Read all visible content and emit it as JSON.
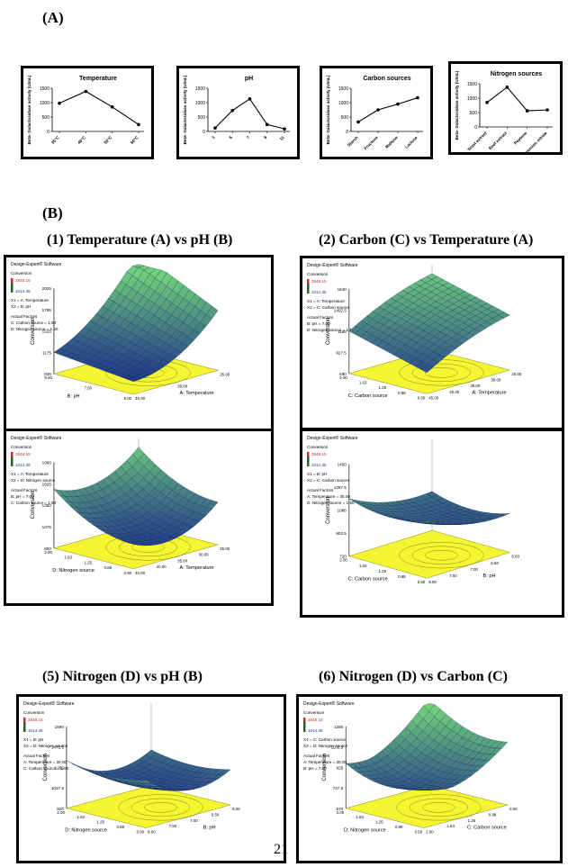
{
  "label_a": "(A)",
  "label_b": "(B)",
  "page_number": "21",
  "charts": [
    {
      "title": "Temperature",
      "ylabel": "Beta- Galactosidase activity (U/mL)",
      "categories": [
        "35°C",
        "40°C",
        "50°C",
        "60°C"
      ],
      "values": [
        980,
        1390,
        850,
        240
      ],
      "ymax": 1500,
      "yticks": [
        0,
        500,
        1000,
        1500
      ]
    },
    {
      "title": "pH",
      "ylabel": "Beta- Galactosidase activity (U/mL)",
      "categories": [
        "3",
        "5",
        "7",
        "9",
        "11"
      ],
      "values": [
        120,
        730,
        1130,
        240,
        90
      ],
      "ymax": 1500,
      "yticks": [
        0,
        500,
        1000,
        1500
      ]
    },
    {
      "title": "Carbon sources",
      "ylabel": "Beta- Galactosidase activity (U/mL)",
      "categories": [
        "Starch",
        "Fructose",
        "Maltose",
        "Lactose"
      ],
      "values": [
        330,
        750,
        950,
        1170
      ],
      "ymax": 1500,
      "yticks": [
        0,
        500,
        1000,
        1500
      ]
    },
    {
      "title": "Nitrogen sources",
      "ylabel": "Beta- Galactosidase activity (U/mL)",
      "categories": [
        "Yeast extract",
        "Beef extract",
        "Peptone",
        "Ammonium nitrate"
      ],
      "values": [
        850,
        1380,
        560,
        590
      ],
      "ymax": 1500,
      "yticks": [
        0,
        500,
        1000,
        1500
      ]
    }
  ],
  "chart_data": [
    {
      "type": "line",
      "title": "Temperature",
      "ylabel": "Beta- Galactosidase activity (U/mL)",
      "categories": [
        "35°C",
        "40°C",
        "50°C",
        "60°C"
      ],
      "values": [
        980,
        1390,
        850,
        240
      ],
      "ylim": [
        0,
        1500
      ]
    },
    {
      "type": "line",
      "title": "pH",
      "ylabel": "Beta- Galactosidase activity (U/mL)",
      "categories": [
        "3",
        "5",
        "7",
        "9",
        "11"
      ],
      "values": [
        120,
        730,
        1130,
        240,
        90
      ],
      "ylim": [
        0,
        1500
      ]
    },
    {
      "type": "line",
      "title": "Carbon sources",
      "ylabel": "Beta- Galactosidase activity (U/mL)",
      "categories": [
        "Starch",
        "Fructose",
        "Maltose",
        "Lactose"
      ],
      "values": [
        330,
        750,
        950,
        1170
      ],
      "ylim": [
        0,
        1500
      ]
    },
    {
      "type": "line",
      "title": "Nitrogen sources",
      "ylabel": "Beta- Galactosidase activity (U/mL)",
      "categories": [
        "Yeast extract",
        "Beef extract",
        "Peptone",
        "Ammonium nitrate"
      ],
      "values": [
        850,
        1380,
        560,
        590
      ],
      "ylim": [
        0,
        1500
      ]
    }
  ],
  "subtitles": {
    "s1": "(1) Temperature (A) vs pH (B)",
    "s2": "(2) Carbon (C) vs Temperature (A)",
    "s5": "(5) Nitrogen (D) vs pH (B)",
    "s6": "(6) Nitrogen (D) vs Carbon (C)"
  },
  "surfaces": [
    {
      "software": "Design-Expert® Software",
      "conv": "Conversion",
      "high": "2848.15",
      "low": "1014.36",
      "x1": "X1 = A: Temperature",
      "x2": "X2 = B: pH",
      "af": "Actual Factors",
      "f1": "C: Carbon source = 1.50",
      "f2": "D: Nitrogen source = 1.50",
      "zlabel": "Conversion",
      "xlabel": "B: pH",
      "ylabel2": "A: Temperature",
      "zt": [
        "2025",
        "1795",
        "1515",
        "1175",
        "835"
      ],
      "xt": [
        "9.00",
        "7.50",
        "6.00"
      ],
      "yt": [
        "45.00",
        "35.00",
        "25.00"
      ]
    },
    {
      "software": "Design-Expert® Software",
      "conv": "Conversion",
      "high": "2848.15",
      "low": "1014.36",
      "x1": "X1 = A: Temperature",
      "x2": "X2 = C: Carbon source",
      "af": "Actual Factors",
      "f1": "B: pH = 7.00",
      "f2": "D: Nitrogen source = 1.50",
      "zlabel": "Conversion",
      "xlabel": "C: Carbon source",
      "ylabel2": "A: Temperature",
      "zt": [
        "1640",
        "1402.5",
        "1165",
        "927.5",
        "690"
      ],
      "xt": [
        "2.00",
        "1.63",
        "1.25",
        "0.88",
        "0.50"
      ],
      "yt": [
        "45.00",
        "40.00",
        "35.00",
        "30.00",
        "25.00"
      ]
    },
    {
      "software": "Design-Expert® Software",
      "conv": "Conversion",
      "high": "2848.15",
      "low": "1014.36",
      "x1": "X1 = A: Temperature",
      "x2": "X2 = D: Nitrogen source",
      "af": "Actual Factors",
      "f1": "B: pH = 7.00",
      "f2": "C: Carbon source = 1.50",
      "zlabel": "Conversion",
      "xlabel": "D: Nitrogen source",
      "ylabel2": "A: Temperature",
      "zt": [
        "1900",
        "1625",
        "1350",
        "1075",
        "800"
      ],
      "xt": [
        "2.00",
        "1.63",
        "1.25",
        "0.88",
        "0.50"
      ],
      "yt": [
        "45.00",
        "40.00",
        "35.00",
        "30.00",
        "25.00"
      ]
    },
    {
      "software": "Design-Expert® Software",
      "conv": "Conversion",
      "high": "2848.15",
      "low": "1014.36",
      "x1": "X1 = B: pH",
      "x2": "X2 = C: Carbon source",
      "af": "Actual Factors",
      "f1": "A: Temperature = 35.00",
      "f2": "D: Nitrogen source = 1.50",
      "zlabel": "Conversion",
      "xlabel": "C: Carbon source",
      "ylabel2": "B: pH",
      "zt": [
        "1450",
        "1267.5",
        "1085",
        "902.5",
        "720"
      ],
      "xt": [
        "2.00",
        "1.63",
        "1.25",
        "0.88",
        "0.50"
      ],
      "yt": [
        "8.00",
        "7.50",
        "7.00",
        "6.50",
        "6.00"
      ]
    },
    {
      "software": "Design-Expert® Software",
      "conv": "Conversion",
      "high": "2848.15",
      "low": "1014.36",
      "x1": "X1 = B: pH",
      "x2": "X2 = D: Nitrogen source",
      "af": "Actual Factors",
      "f1": "A: Temperature = 35.00",
      "f2": "C: Carbon source = 1.50",
      "zlabel": "Conversion",
      "xlabel": "D: Nitrogen source",
      "ylabel2": "B: pH",
      "zt": [
        "1690",
        "1472.5",
        "1255",
        "1037.5",
        "820"
      ],
      "xt": [
        "2.00",
        "1.63",
        "1.25",
        "0.88",
        "0.50"
      ],
      "yt": [
        "8.00",
        "7.50",
        "7.00",
        "6.50",
        "6.00"
      ]
    },
    {
      "software": "Design-Expert® Software",
      "conv": "Conversion",
      "high": "2848.15",
      "low": "1014.36",
      "x1": "X1 = C: Carbon source",
      "x2": "X2 = D: Nitrogen source",
      "af": "Actual Factors",
      "f1": "A: Temperature = 35.00",
      "f2": "B: pH = 7.00",
      "zlabel": "Conversion",
      "xlabel": "D: Nitrogen source",
      "ylabel2": "C: Carbon source",
      "zt": [
        "1280",
        "1102.5",
        "925",
        "747.5",
        "570"
      ],
      "xt": [
        "2.00",
        "1.63",
        "1.25",
        "0.88",
        "0.50"
      ],
      "yt": [
        "2.00",
        "1.63",
        "1.25",
        "0.88",
        "0.50"
      ]
    }
  ],
  "colors": {
    "surface_low": "#1c2f8c",
    "surface_high": "#7fcf6a",
    "base": "#f5f532",
    "line": "#000000"
  }
}
